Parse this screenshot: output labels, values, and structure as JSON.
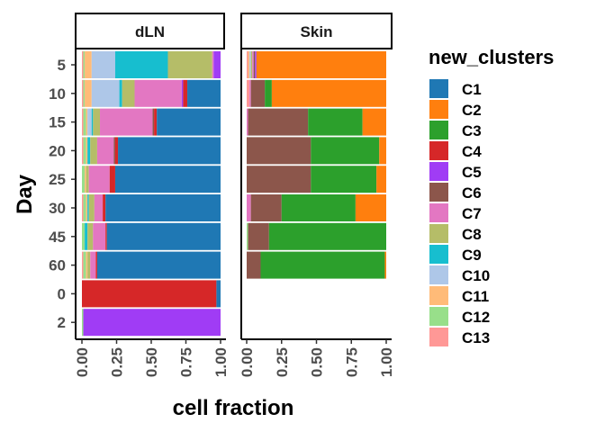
{
  "chart_data": {
    "type": "bar",
    "orientation": "horizontal",
    "stacked": true,
    "xlabel": "cell fraction",
    "ylabel": "Day",
    "xlim": [
      0,
      1
    ],
    "x_ticks": [
      "0.00",
      "0.25",
      "0.50",
      "0.75",
      "1.00"
    ],
    "categories": [
      "5",
      "10",
      "15",
      "20",
      "25",
      "30",
      "45",
      "60",
      "0",
      "2"
    ],
    "legend_title": "new_clusters",
    "legend_position": "right",
    "grid": false,
    "clusters": [
      {
        "name": "C1",
        "color": "#1F78B4"
      },
      {
        "name": "C2",
        "color": "#FF7F0E"
      },
      {
        "name": "C3",
        "color": "#2CA02C"
      },
      {
        "name": "C4",
        "color": "#D62728"
      },
      {
        "name": "C5",
        "color": "#A03CF5"
      },
      {
        "name": "C6",
        "color": "#8C564B"
      },
      {
        "name": "C7",
        "color": "#E377C2"
      },
      {
        "name": "C8",
        "color": "#B5BD68"
      },
      {
        "name": "C9",
        "color": "#17BECF"
      },
      {
        "name": "C10",
        "color": "#AEC7E8"
      },
      {
        "name": "C11",
        "color": "#FFBB78"
      },
      {
        "name": "C12",
        "color": "#98DF8A"
      },
      {
        "name": "C13",
        "color": "#FF9896"
      }
    ],
    "panels": [
      {
        "name": "dLN",
        "rows": [
          {
            "day": "5",
            "segments": {
              "C13": 0.01,
              "C12": 0.01,
              "C11": 0.05,
              "C10": 0.17,
              "C9": 0.38,
              "C8": 0.32,
              "C7": 0.01,
              "C5": 0.05
            }
          },
          {
            "day": "10",
            "segments": {
              "C13": 0.01,
              "C12": 0.01,
              "C11": 0.05,
              "C10": 0.2,
              "C9": 0.02,
              "C8": 0.09,
              "C7": 0.34,
              "C5": 0.01,
              "C4": 0.03,
              "C1": 0.24
            }
          },
          {
            "day": "15",
            "segments": {
              "C13": 0.01,
              "C12": 0.02,
              "C11": 0.01,
              "C10": 0.03,
              "C9": 0.01,
              "C8": 0.05,
              "C7": 0.38,
              "C6": 0.01,
              "C4": 0.02,
              "C1": 0.46
            }
          },
          {
            "day": "20",
            "segments": {
              "C13": 0.01,
              "C12": 0.02,
              "C11": 0.01,
              "C9": 0.02,
              "C8": 0.05,
              "C7": 0.12,
              "C6": 0.01,
              "C4": 0.02,
              "C1": 0.74
            }
          },
          {
            "day": "25",
            "segments": {
              "C12": 0.02,
              "C11": 0.01,
              "C8": 0.02,
              "C7": 0.15,
              "C4": 0.04,
              "C1": 0.76
            }
          },
          {
            "day": "30",
            "segments": {
              "C13": 0.01,
              "C12": 0.02,
              "C11": 0.01,
              "C9": 0.01,
              "C8": 0.04,
              "C7": 0.06,
              "C4": 0.02,
              "C1": 0.83
            }
          },
          {
            "day": "45",
            "segments": {
              "C12": 0.02,
              "C9": 0.02,
              "C8": 0.04,
              "C7": 0.09,
              "C4": 0.01,
              "C1": 0.82
            }
          },
          {
            "day": "60",
            "segments": {
              "C13": 0.01,
              "C12": 0.02,
              "C11": 0.01,
              "C8": 0.02,
              "C7": 0.04,
              "C4": 0.01,
              "C1": 0.89
            }
          },
          {
            "day": "0",
            "segments": {
              "C4": 0.97,
              "C1": 0.03
            }
          },
          {
            "day": "2",
            "segments": {
              "C12": 0.01,
              "C5": 0.99
            }
          }
        ]
      },
      {
        "name": "Skin",
        "rows": [
          {
            "day": "5",
            "segments": {
              "C13": 0.01,
              "C11": 0.01,
              "C10": 0.01,
              "C8": 0.01,
              "C7": 0.01,
              "C6": 0.01,
              "C5": 0.01,
              "C2": 0.93
            }
          },
          {
            "day": "10",
            "segments": {
              "C13": 0.02,
              "C7": 0.01,
              "C6": 0.1,
              "C3": 0.05,
              "C2": 0.82
            }
          },
          {
            "day": "15",
            "segments": {
              "C7": 0.01,
              "C6": 0.43,
              "C3": 0.39,
              "C2": 0.17
            }
          },
          {
            "day": "20",
            "segments": {
              "C6": 0.46,
              "C3": 0.49,
              "C2": 0.05
            }
          },
          {
            "day": "25",
            "segments": {
              "C6": 0.46,
              "C3": 0.47,
              "C2": 0.07
            }
          },
          {
            "day": "30",
            "segments": {
              "C7": 0.03,
              "C6": 0.22,
              "C3": 0.53,
              "C2": 0.22
            }
          },
          {
            "day": "45",
            "segments": {
              "C6": 0.15,
              "C3": 0.84,
              "C12": 0.01
            }
          },
          {
            "day": "60",
            "segments": {
              "C6": 0.1,
              "C3": 0.89,
              "C2": 0.01
            }
          },
          {
            "day": "0",
            "segments": {}
          },
          {
            "day": "2",
            "segments": {}
          }
        ]
      }
    ]
  }
}
